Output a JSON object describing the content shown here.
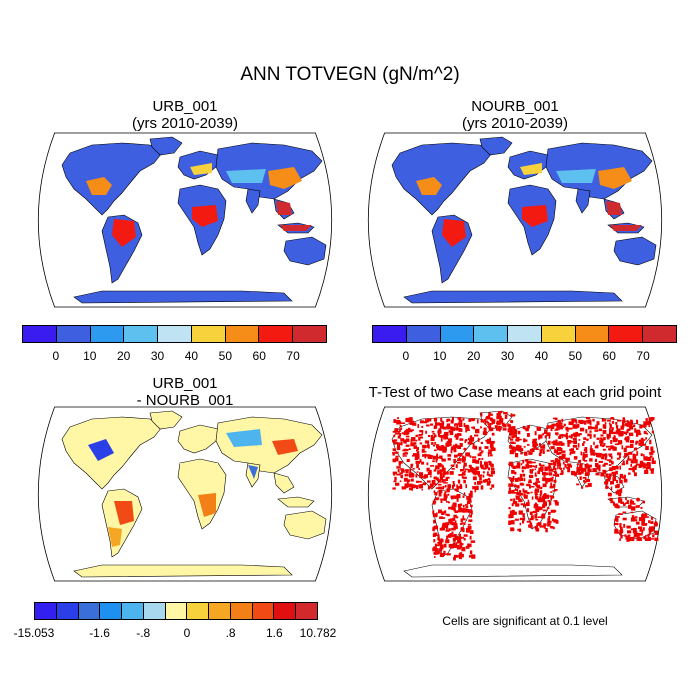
{
  "main_title": "ANN TOTVEGN (gN/m^2)",
  "panels": [
    {
      "title1": "URB_001",
      "title2": "(yrs 2010-2039)"
    },
    {
      "title1": "NOURB_001",
      "title2": "(yrs 2010-2039)"
    },
    {
      "title1": "URB_001",
      "title2": "- NOURB_001"
    },
    {
      "title1": "T-Test of two Case means at each grid point",
      "title2": ""
    }
  ],
  "colorbar_abs": {
    "colors": [
      "#3a1cf0",
      "#3d5fe0",
      "#2d9af0",
      "#5ec0ee",
      "#bfe3f2",
      "#f8d23c",
      "#f58d18",
      "#f31a12",
      "#d12a2e"
    ],
    "ticks": [
      "0",
      "10",
      "20",
      "30",
      "40",
      "50",
      "60",
      "70"
    ]
  },
  "colorbar_diff": {
    "colors": [
      "#3320f0",
      "#2a3fe8",
      "#3a6ed8",
      "#1e90f0",
      "#4eb4ee",
      "#a8d8ee",
      "#fff6a6",
      "#f8d23c",
      "#f5a623",
      "#f28016",
      "#f24a14",
      "#e01010",
      "#d22a2c"
    ],
    "ticks": [
      "-15.053",
      "-1.6",
      "-.8",
      "0",
      ".8",
      "1.6",
      "10.782"
    ]
  },
  "ttest_note": "Cells are significant at 0.1 level",
  "colors": {
    "ocean": "#ffffff",
    "low_land": "#3d5fe0",
    "high_land": "#e01010",
    "neutral_diff": "#fff6a6",
    "significant": "#ee0000"
  }
}
